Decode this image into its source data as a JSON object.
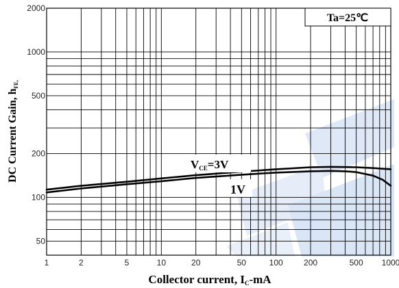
{
  "chart_data": {
    "type": "line",
    "title": "",
    "xlabel": {
      "main": "Collector current, I",
      "sub": "C",
      "suffix": "-mA"
    },
    "ylabel": {
      "main": "DC Current Gain, h",
      "sub": "FE,"
    },
    "xscale": "log",
    "yscale": "log",
    "xlim": [
      1,
      1000
    ],
    "ylim": [
      40,
      2000
    ],
    "x_ticks": [
      1,
      2,
      5,
      10,
      20,
      50,
      100,
      200,
      500,
      1000
    ],
    "x_tick_labels": [
      "1",
      "2",
      "5",
      "10",
      "20",
      "50",
      "100",
      "200",
      "500",
      "1000"
    ],
    "y_ticks": [
      50,
      100,
      200,
      500,
      1000,
      2000
    ],
    "y_tick_labels": [
      "50",
      "100",
      "200",
      "500",
      "1000",
      "2000"
    ],
    "grid": true,
    "condition_label": "Ta=25℃",
    "series": [
      {
        "name": "VCE=3V",
        "label_main": "V",
        "label_sub": "CE",
        "label_suffix": "=3V",
        "x": [
          1,
          2,
          5,
          10,
          20,
          50,
          100,
          200,
          300,
          500,
          700,
          1000
        ],
        "y": [
          113,
          120,
          128,
          135,
          142,
          150,
          156,
          161,
          162,
          161,
          159,
          156
        ]
      },
      {
        "name": "1V",
        "label_main": "1V",
        "x": [
          1,
          2,
          5,
          10,
          20,
          50,
          100,
          200,
          300,
          400,
          500,
          700,
          850,
          1000
        ],
        "y": [
          108,
          115,
          123,
          129,
          136,
          143,
          148,
          151,
          152,
          151,
          149,
          141,
          132,
          120
        ]
      }
    ]
  }
}
